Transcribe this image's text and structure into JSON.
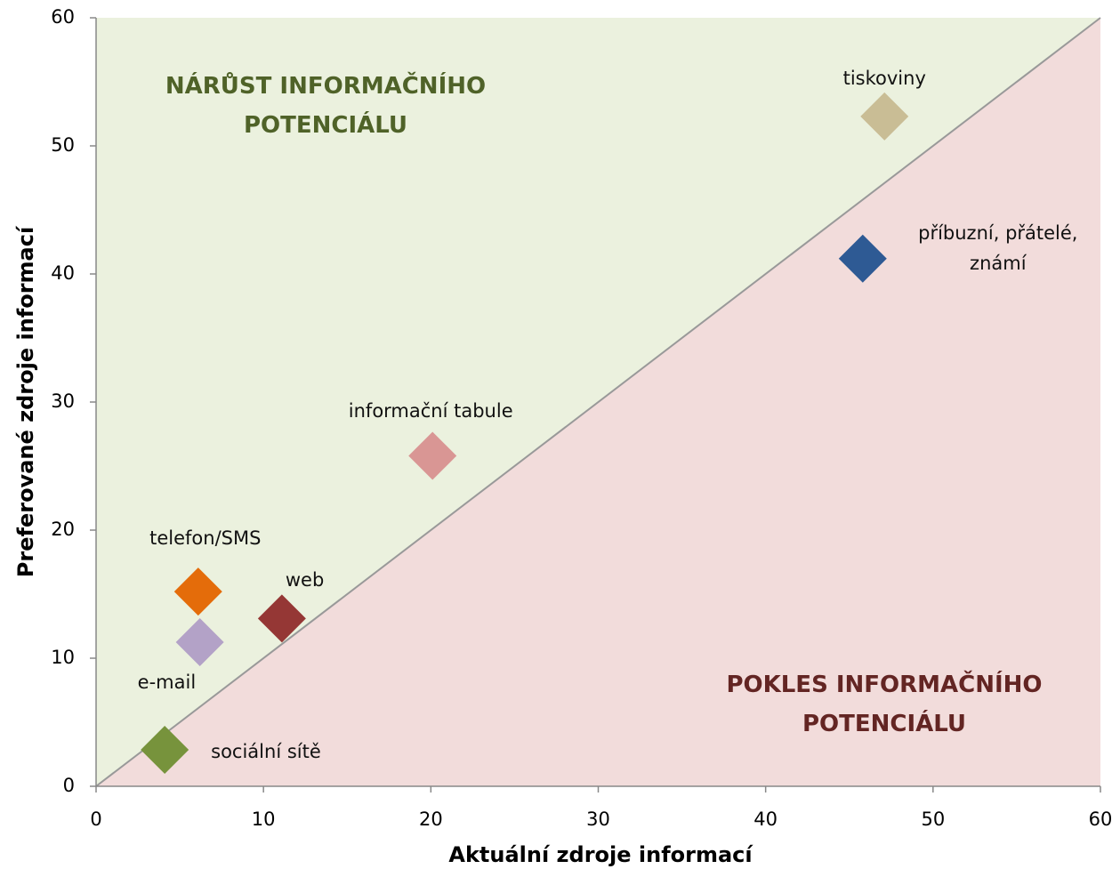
{
  "chart_data": {
    "type": "scatter",
    "xlabel": "Aktuální zdroje informací",
    "ylabel": "Preferované zdroje informací",
    "xlim": [
      0,
      60
    ],
    "xticks": [
      0,
      10,
      20,
      30,
      40,
      50,
      60
    ],
    "ylim": [
      0,
      60
    ],
    "yticks": [
      0,
      10,
      20,
      30,
      40,
      50,
      60
    ],
    "annotations": [
      {
        "text": "NÁRŮST INFORMAČNÍHO POTENCIÁLU",
        "color": "#4f6228",
        "region_color": "#ebf1de"
      },
      {
        "text": "POKLES INFORMAČNÍHO POTENCIÁLU",
        "color": "#632523",
        "region_color": "#f2dcdb"
      }
    ],
    "series": [
      {
        "name": "tiskoviny",
        "color": "#c9bd95",
        "x": [
          47.1
        ],
        "values": [
          52.3
        ]
      },
      {
        "name": "příbuzní, přátelé, známí",
        "color": "#2e5a94",
        "x": [
          45.8
        ],
        "values": [
          41.2
        ]
      },
      {
        "name": "informační tabule",
        "color": "#d99694",
        "x": [
          20.1
        ],
        "values": [
          25.8
        ]
      },
      {
        "name": "telefon/SMS",
        "color": "#e46c0a",
        "x": [
          6.1
        ],
        "values": [
          15.2
        ]
      },
      {
        "name": "web",
        "color": "#953735",
        "x": [
          11.1
        ],
        "values": [
          13.1
        ]
      },
      {
        "name": "e-mail",
        "color": "#b3a2c7",
        "x": [
          6.2
        ],
        "values": [
          11.25
        ]
      },
      {
        "name": "sociální sítě",
        "color": "#77933c",
        "x": [
          4.1
        ],
        "values": [
          2.85
        ]
      }
    ]
  }
}
